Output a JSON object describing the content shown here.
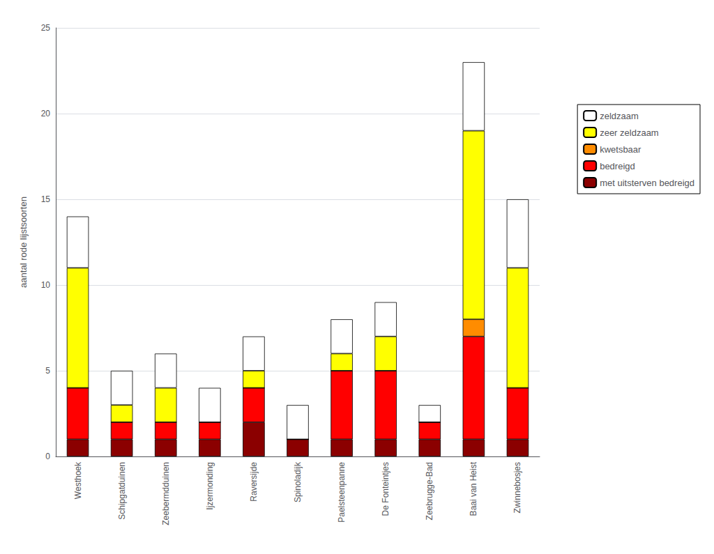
{
  "chart_data": {
    "type": "bar",
    "stacked": true,
    "categories": [
      "Westhoek",
      "Schipgatduinen",
      "Zeebermdduinen",
      "Ijzermonding",
      "Raversijde",
      "Spinoladijk",
      "Paelsteenpanne",
      "De Fonteintjes",
      "Zeebrugge-Bad",
      "Baai van Heist",
      "Zwinnebosjes"
    ],
    "series": [
      {
        "name": "met uitsterven bedreigd",
        "color": "#8B0000",
        "values": [
          1,
          1,
          1,
          1,
          2,
          1,
          1,
          1,
          1,
          1,
          1
        ]
      },
      {
        "name": "bedreigd",
        "color": "#FF0000",
        "values": [
          3,
          1,
          1,
          1,
          2,
          0,
          4,
          4,
          1,
          6,
          3
        ]
      },
      {
        "name": "kwetsbaar",
        "color": "#FF8C00",
        "values": [
          0,
          0,
          0,
          0,
          0,
          0,
          0,
          0,
          0,
          1,
          0
        ]
      },
      {
        "name": "zeer zeldzaam",
        "color": "#FFFF00",
        "values": [
          7,
          1,
          2,
          0,
          1,
          0,
          1,
          2,
          0,
          11,
          7
        ]
      },
      {
        "name": "zeldzaam",
        "color": "#FFFFFF",
        "values": [
          3,
          2,
          2,
          2,
          2,
          2,
          2,
          2,
          1,
          4,
          4
        ]
      }
    ],
    "ylabel": "aantal rode lijstsoorten",
    "ylim": [
      0,
      25
    ],
    "yticks": [
      0,
      5,
      10,
      15,
      20,
      25
    ],
    "grid": true,
    "legend": "right"
  }
}
